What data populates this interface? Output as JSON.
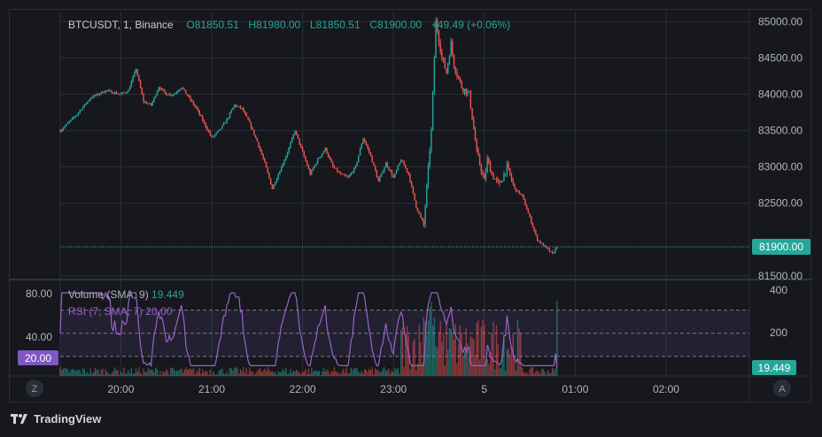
{
  "header": {
    "symbol": "BTCUSDT, 1, Binance",
    "o_label": "O",
    "o_value": "81850.51",
    "h_label": "H",
    "h_value": "81980.00",
    "l_label": "L",
    "l_value": "81850.51",
    "c_label": "C",
    "c_value": "81900.00",
    "change": "+49.49 (+0.06%)"
  },
  "indicators": {
    "volume_name": "Volume (SMA, 9)",
    "volume_value": "19.449",
    "rsi_name": "RSI (7, SMA, 7)",
    "rsi_value": "20.00"
  },
  "footer": {
    "brand": "TradingView"
  },
  "colors": {
    "background": "#16181d",
    "grid": "#2a2e39",
    "up": "#26a69a",
    "down": "#ef5350",
    "rsi_line": "#9c62c7",
    "rsi_band": "#7e57c2",
    "axis_text": "#b2b5be"
  },
  "icons": [
    "zoom-button-icon",
    "auto-scale-button-icon",
    "tradingview-logo-icon"
  ],
  "chart_data": {
    "type": "candlestick",
    "price_axis": {
      "ticks": [
        "85000.00",
        "84500.00",
        "84000.00",
        "83500.00",
        "83000.00",
        "82500.00",
        "81500.00"
      ],
      "ylim": [
        81450,
        85150
      ],
      "last_price": 81900.0,
      "last_price_label": "81900.00"
    },
    "time_axis": {
      "ticks": [
        "20:00",
        "21:00",
        "22:00",
        "23:00",
        "5",
        "01:00",
        "02:00"
      ],
      "tick_minutes": [
        0,
        60,
        120,
        180,
        240,
        300,
        360
      ],
      "xlim_minutes": [
        -40,
        415
      ]
    },
    "price_knots_minutes": [
      -40,
      -30,
      -20,
      -10,
      0,
      5,
      10,
      15,
      20,
      25,
      30,
      35,
      40,
      45,
      50,
      55,
      60,
      65,
      70,
      75,
      80,
      85,
      90,
      95,
      100,
      105,
      110,
      115,
      120,
      125,
      130,
      135,
      140,
      145,
      150,
      155,
      160,
      165,
      170,
      175,
      180,
      185,
      190,
      195,
      200,
      205,
      208,
      210,
      212,
      215,
      218,
      220,
      225,
      230,
      235,
      240,
      242,
      245,
      248,
      250,
      255,
      260,
      265,
      270,
      275,
      280,
      285,
      288
    ],
    "price_knots": [
      83500,
      83700,
      83950,
      84050,
      84000,
      84050,
      84350,
      83900,
      83850,
      84100,
      84000,
      84000,
      84100,
      83950,
      83800,
      83600,
      83400,
      83500,
      83650,
      83850,
      83800,
      83600,
      83350,
      83050,
      82700,
      82950,
      83200,
      83500,
      83200,
      82900,
      83100,
      83250,
      83000,
      82900,
      82850,
      83000,
      83400,
      83150,
      82800,
      83050,
      82850,
      83100,
      82900,
      82450,
      82200,
      83500,
      85000,
      84750,
      84500,
      84300,
      84700,
      84400,
      84100,
      84000,
      83200,
      82800,
      83100,
      82900,
      82800,
      82750,
      83000,
      82700,
      82600,
      82300,
      82000,
      81900,
      81800,
      81900
    ],
    "volume_axis": {
      "ticks": [
        "400",
        "200"
      ],
      "last_value_label": "19.449"
    },
    "rsi_axis": {
      "ticks": [
        "80.00",
        "40.00"
      ],
      "overbought": 70,
      "oversold": 30,
      "mid": 50,
      "last_value_label": "20.00"
    }
  }
}
